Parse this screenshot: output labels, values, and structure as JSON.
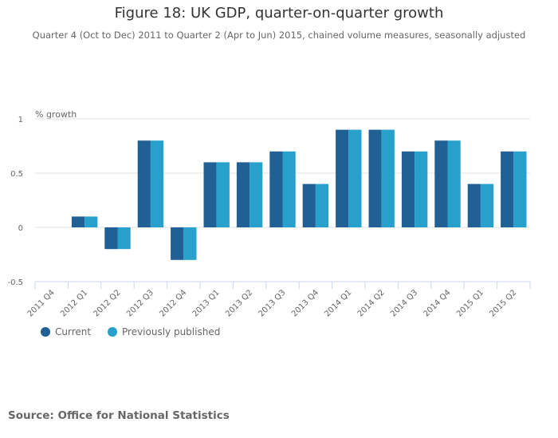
{
  "chart_data": {
    "type": "bar",
    "title": "Figure 18: UK GDP, quarter-on-quarter growth",
    "subtitle": "Quarter 4 (Oct to Dec) 2011 to Quarter 2 (Apr to Jun) 2015, chained volume measures, seasonally adjusted",
    "ylabel": "% growth",
    "xlabel": "",
    "ylim": [
      -0.5,
      1
    ],
    "yticks": [
      -0.5,
      0,
      0.5,
      1
    ],
    "ytick_labels": [
      "-0.5",
      "0",
      "0.5",
      "1"
    ],
    "grid": true,
    "legend_position": "bottom-left",
    "categories": [
      "2011 Q4",
      "2012 Q1",
      "2012 Q2",
      "2012 Q3",
      "2012 Q4",
      "2013 Q1",
      "2013 Q2",
      "2013 Q3",
      "2013 Q4",
      "2014 Q1",
      "2014 Q2",
      "2014 Q3",
      "2014 Q4",
      "2015 Q1",
      "2015 Q2"
    ],
    "series": [
      {
        "name": "Current",
        "color": "#206095",
        "values": [
          null,
          0.1,
          -0.2,
          0.8,
          -0.3,
          0.6,
          0.6,
          0.7,
          0.4,
          0.9,
          0.9,
          0.7,
          0.8,
          0.4,
          0.7
        ]
      },
      {
        "name": "Previously published",
        "color": "#27a0cc",
        "values": [
          null,
          0.1,
          -0.2,
          0.8,
          -0.3,
          0.6,
          0.6,
          0.7,
          0.4,
          0.9,
          0.9,
          0.7,
          0.8,
          0.4,
          0.7
        ]
      }
    ]
  },
  "source": "Source: Office for National Statistics"
}
